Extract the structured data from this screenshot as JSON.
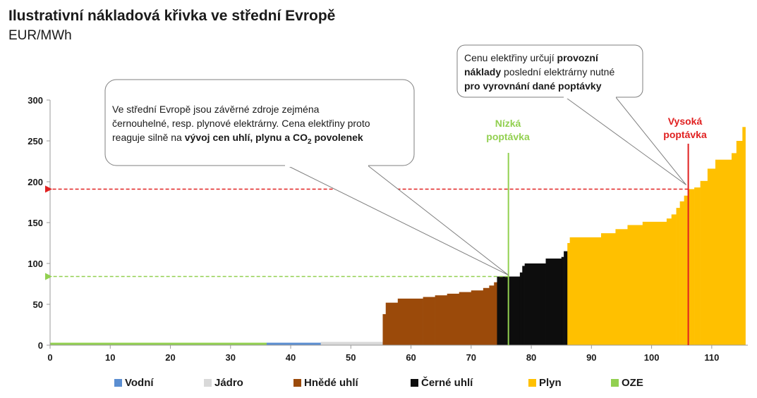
{
  "title": "Ilustrativní nákladová křivka ve střední Evropě",
  "subtitle": "EUR/MWh",
  "colors": {
    "vodni": "#5b8ed1",
    "jadro": "#d9d9d9",
    "hnede": "#9b4a0a",
    "cerne": "#0d0d0d",
    "plyn": "#ffc000",
    "oze": "#92d050",
    "nizka": "#92d050",
    "vysoka": "#e02020"
  },
  "callouts": {
    "left": {
      "line1": "Ve střední Evropě jsou závěrné zdroje zejména",
      "line2": "černouhelné, resp. plynové elektrárny. Cena elektřiny proto",
      "line3_pre": "reaguje silně na ",
      "line3_bold": "vývoj cen uhlí, plynu a CO",
      "line3_sub": "2",
      "line3_bold2": " povolenek"
    },
    "right": {
      "l1_pre": "Cenu elektřiny určují ",
      "l1_bold": "provozní",
      "l2_bold": "náklady",
      "l2_post": " poslední elektrárny nutné",
      "l3_bold": "pro vyrovnání dané poptávky"
    }
  },
  "demand_labels": {
    "low_line1": "Nízká",
    "low_line2": "poptávka",
    "high_line1": "Vysoká",
    "high_line2": "poptávka"
  },
  "legend": [
    {
      "key": "vodni",
      "label": "Vodní"
    },
    {
      "key": "jadro",
      "label": "Jádro"
    },
    {
      "key": "hnede",
      "label": "Hnědé uhlí"
    },
    {
      "key": "cerne",
      "label": "Černé uhlí"
    },
    {
      "key": "plyn",
      "label": "Plyn"
    },
    {
      "key": "oze",
      "label": "OZE"
    }
  ],
  "chart_data": {
    "type": "area",
    "title": "Ilustrativní nákladová křivka ve střední Evropě",
    "ylabel": "EUR/MWh",
    "xlim": [
      0,
      116
    ],
    "ylim": [
      0,
      300
    ],
    "xticks": [
      0,
      10,
      20,
      30,
      40,
      50,
      60,
      70,
      80,
      90,
      100,
      110
    ],
    "yticks": [
      0,
      50,
      100,
      150,
      200,
      250,
      300
    ],
    "grid": false,
    "legend_position": "bottom",
    "low_demand_x": 76.2,
    "low_demand_price": 84,
    "high_demand_x": 106.1,
    "high_demand_price": 191,
    "series": [
      {
        "name": "OZE",
        "key": "oze",
        "steps": [
          [
            0,
            36,
            3
          ]
        ]
      },
      {
        "name": "Vodní",
        "key": "vodni",
        "steps": [
          [
            36,
            45,
            3
          ]
        ]
      },
      {
        "name": "Jádro",
        "key": "jadro",
        "steps": [
          [
            45,
            55.3,
            4
          ]
        ]
      },
      {
        "name": "Hnědé uhlí",
        "key": "hnede",
        "steps": [
          [
            55.3,
            55.8,
            38
          ],
          [
            55.8,
            57.8,
            52
          ],
          [
            57.8,
            62,
            57
          ],
          [
            62,
            64,
            59
          ],
          [
            64,
            66,
            61
          ],
          [
            66,
            68,
            63
          ],
          [
            68,
            70,
            65
          ],
          [
            70,
            72,
            67
          ],
          [
            72,
            73,
            70
          ],
          [
            73,
            73.8,
            73
          ],
          [
            73.8,
            74.3,
            77
          ]
        ]
      },
      {
        "name": "Černé uhlí",
        "key": "cerne",
        "steps": [
          [
            74.3,
            78.1,
            84
          ],
          [
            78.1,
            78.5,
            89
          ],
          [
            78.5,
            78.9,
            97
          ],
          [
            78.9,
            82.4,
            100
          ],
          [
            82.4,
            85,
            106
          ],
          [
            85,
            85.4,
            108
          ],
          [
            85.4,
            86,
            115
          ]
        ]
      },
      {
        "name": "Plyn",
        "key": "plyn",
        "steps": [
          [
            86,
            86.4,
            125
          ],
          [
            86.4,
            91.6,
            132
          ],
          [
            91.6,
            94,
            137
          ],
          [
            94,
            96,
            142
          ],
          [
            96,
            98.5,
            147
          ],
          [
            98.5,
            102.5,
            151
          ],
          [
            102.5,
            103.3,
            155
          ],
          [
            103.3,
            104.1,
            160
          ],
          [
            104.1,
            104.7,
            168
          ],
          [
            104.7,
            105.4,
            176
          ],
          [
            105.4,
            106.1,
            183
          ],
          [
            106.1,
            107.1,
            191
          ],
          [
            107.1,
            108.1,
            193
          ],
          [
            108.1,
            109.3,
            201
          ],
          [
            109.3,
            110.6,
            216
          ],
          [
            110.6,
            113.3,
            227
          ],
          [
            113.3,
            114.1,
            235
          ],
          [
            114.1,
            115.1,
            250
          ],
          [
            115.1,
            115.6,
            267
          ]
        ]
      }
    ]
  }
}
